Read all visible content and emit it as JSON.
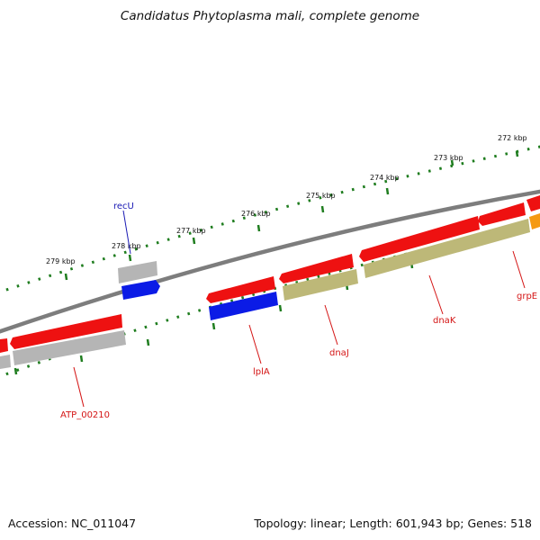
{
  "title": "Candidatus Phytoplasma mali, complete genome",
  "footer": {
    "accession": "Accession: NC_011047",
    "summary": "Topology: linear; Length: 601,943 bp; Genes: 518"
  },
  "colors": {
    "cds": "#ee1111",
    "trna": "#0b1be6",
    "gene": "#b5b5b5",
    "gene_alt": "#bdb878",
    "orange": "#f59a12",
    "backbone": "#7d7d7d",
    "ruler": "#1f7d1f",
    "label": "#d41414",
    "label_trna": "#1a1ab4"
  },
  "ruler_labels": [
    "272 kbp",
    "273 kbp",
    "274 kbp",
    "275 kbp",
    "276 kbp",
    "277 kbp",
    "278 kbp",
    "279 kbp"
  ],
  "gene_labels": [
    "grpE",
    "dnaK",
    "dnaJ",
    "lplA",
    "recU",
    "ATP_00210"
  ]
}
